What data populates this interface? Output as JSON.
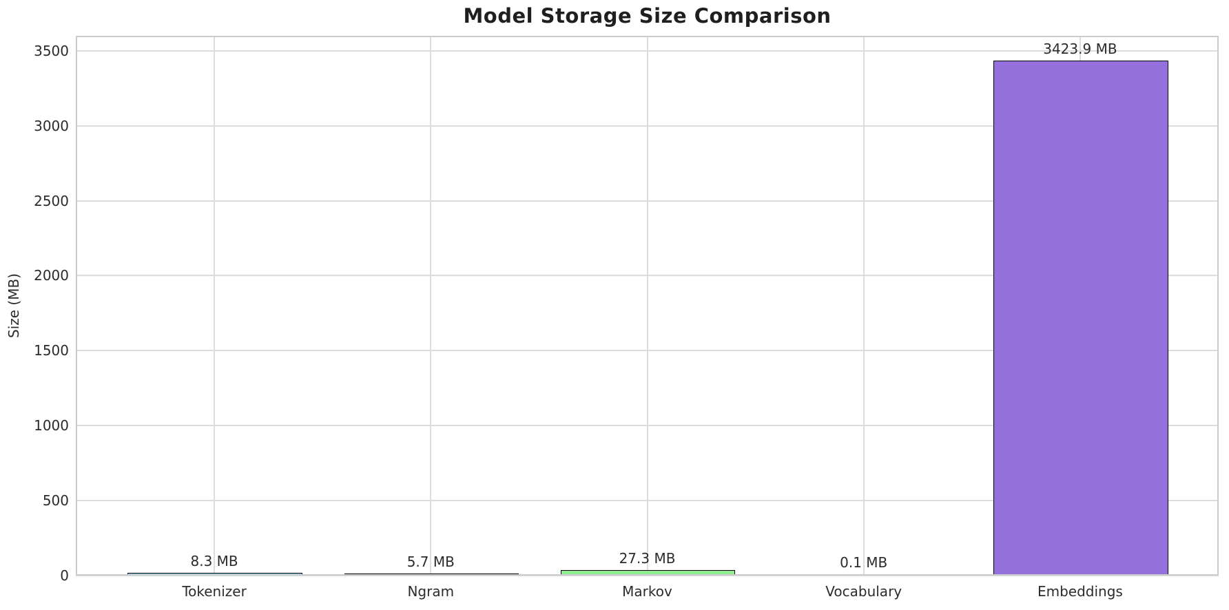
{
  "chart_data": {
    "type": "bar",
    "title": "Model Storage Size Comparison",
    "ylabel": "Size (MB)",
    "xlabel": "",
    "categories": [
      "Tokenizer",
      "Ngram",
      "Markov",
      "Vocabulary",
      "Embeddings"
    ],
    "values": [
      8.3,
      5.7,
      27.3,
      0.1,
      3423.9
    ],
    "value_labels": [
      "8.3 MB",
      "5.7 MB",
      "27.3 MB",
      "0.1 MB",
      "3423.9 MB"
    ],
    "bar_colors": [
      "#87CEEB",
      "#F08080",
      "#90EE90",
      "#FFD700",
      "#9370DB"
    ],
    "bar_edge_color": "#000000",
    "ylim": [
      0,
      3600
    ],
    "yticks": [
      0,
      500,
      1000,
      1500,
      2000,
      2500,
      3000,
      3500
    ],
    "grid": true,
    "legend_position": "none",
    "colors": {
      "gridline": "#dcdcdc",
      "spine": "#cccccc",
      "text": "#2b2b2b",
      "title": "#1f1f1f",
      "background": "#ffffff"
    }
  }
}
